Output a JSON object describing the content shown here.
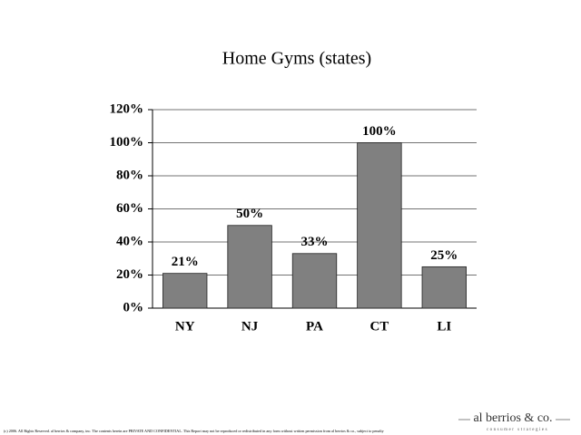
{
  "chart_data": {
    "type": "bar",
    "title": "Home Gyms (states)",
    "categories": [
      "NY",
      "NJ",
      "PA",
      "CT",
      "LI"
    ],
    "values": [
      21,
      50,
      33,
      100,
      25
    ],
    "value_labels": [
      "21%",
      "50%",
      "33%",
      "100%",
      "25%"
    ],
    "color": "#808080",
    "ylim": [
      0,
      120
    ],
    "yticks": [
      {
        "value": 0,
        "label": "0%"
      },
      {
        "value": 20,
        "label": "20%"
      },
      {
        "value": 40,
        "label": "40%"
      },
      {
        "value": 60,
        "label": "60%"
      },
      {
        "value": 80,
        "label": "80%"
      },
      {
        "value": 100,
        "label": "100%"
      },
      {
        "value": 120,
        "label": "120%"
      }
    ],
    "grid": true
  },
  "footer": {
    "notice": "(c) 2006. All Rights Reserved. al berrios & company, inc. The contents herein are PRIVATE AND CONFIDENTIAL. This Report may not be reproduced or redistributed in any form without written permission from al berrios & co., subject to penalty",
    "logo": "al berrios & co.",
    "tagline": "consumer strategies"
  }
}
